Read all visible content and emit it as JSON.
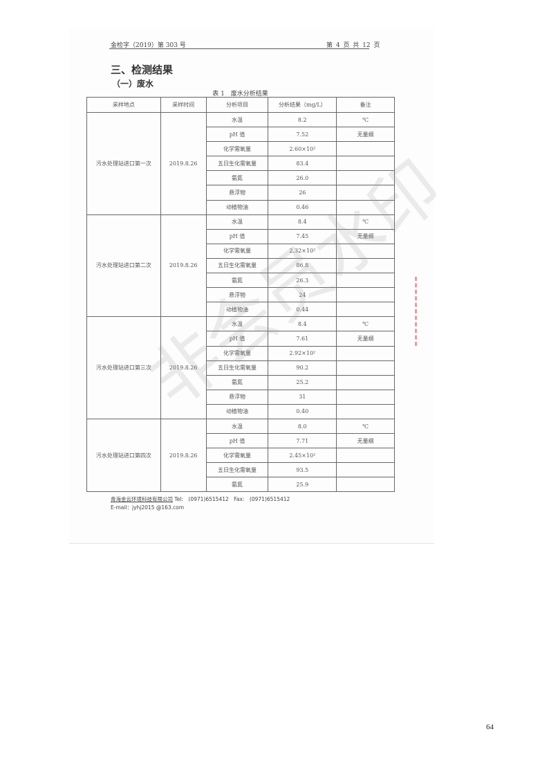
{
  "header": {
    "doc_number": "金检字（2019）第 303 号",
    "page_info": "第 4 页 共 12 页"
  },
  "section_title": "三、检测结果",
  "subsection_title": "（一）废水",
  "table": {
    "caption": "表 1　废水分析结果",
    "columns": [
      "采样地点",
      "采样时间",
      "分析项目",
      "分析结果（mg/L）",
      "备注"
    ],
    "groups": [
      {
        "site": "污水处理站进口第一次",
        "date": "2019.8.26",
        "rows": [
          [
            "水温",
            "8.2",
            "℃"
          ],
          [
            "pH 值",
            "7.52",
            "无量纲"
          ],
          [
            "化学需氧量",
            "2.60×10²",
            ""
          ],
          [
            "五日生化需氧量",
            "83.4",
            ""
          ],
          [
            "氨氮",
            "26.0",
            ""
          ],
          [
            "悬浮物",
            "26",
            ""
          ],
          [
            "动植物油",
            "0.46",
            ""
          ]
        ]
      },
      {
        "site": "污水处理站进口第二次",
        "date": "2019.8.26",
        "rows": [
          [
            "水温",
            "8.4",
            "℃"
          ],
          [
            "pH 值",
            "7.45",
            "无量纲"
          ],
          [
            "化学需氧量",
            "2.32×10²",
            ""
          ],
          [
            "五日生化需氧量",
            "86.8",
            ""
          ],
          [
            "氨氮",
            "26.3",
            ""
          ],
          [
            "悬浮物",
            "24",
            ""
          ],
          [
            "动植物油",
            "0.44",
            ""
          ]
        ]
      },
      {
        "site": "污水处理站进口第三次",
        "date": "2019.8.26",
        "rows": [
          [
            "水温",
            "8.4",
            "℃"
          ],
          [
            "pH 值",
            "7.61",
            "无量纲"
          ],
          [
            "化学需氧量",
            "2.92×10²",
            ""
          ],
          [
            "五日生化需氧量",
            "90.2",
            ""
          ],
          [
            "氨氮",
            "25.2",
            ""
          ],
          [
            "悬浮物",
            "31",
            ""
          ],
          [
            "动植物油",
            "0.40",
            ""
          ]
        ]
      },
      {
        "site": "污水处理站进口第四次",
        "date": "2019.8.26",
        "rows": [
          [
            "水温",
            "8.0",
            "℃"
          ],
          [
            "pH 值",
            "7.71",
            "无量纲"
          ],
          [
            "化学需氧量",
            "2.45×10²",
            ""
          ],
          [
            "五日生化需氧量",
            "93.5",
            ""
          ],
          [
            "氨氮",
            "25.9",
            ""
          ]
        ]
      }
    ]
  },
  "footer": {
    "company": "青海金云环境科技有限公司",
    "contact": " Tel:　(0971)6515412　Fax:　(0971)6515412",
    "email": "E-mail：jyhj2015 @163.com"
  },
  "watermark": "非会员水印",
  "page_number": "64"
}
